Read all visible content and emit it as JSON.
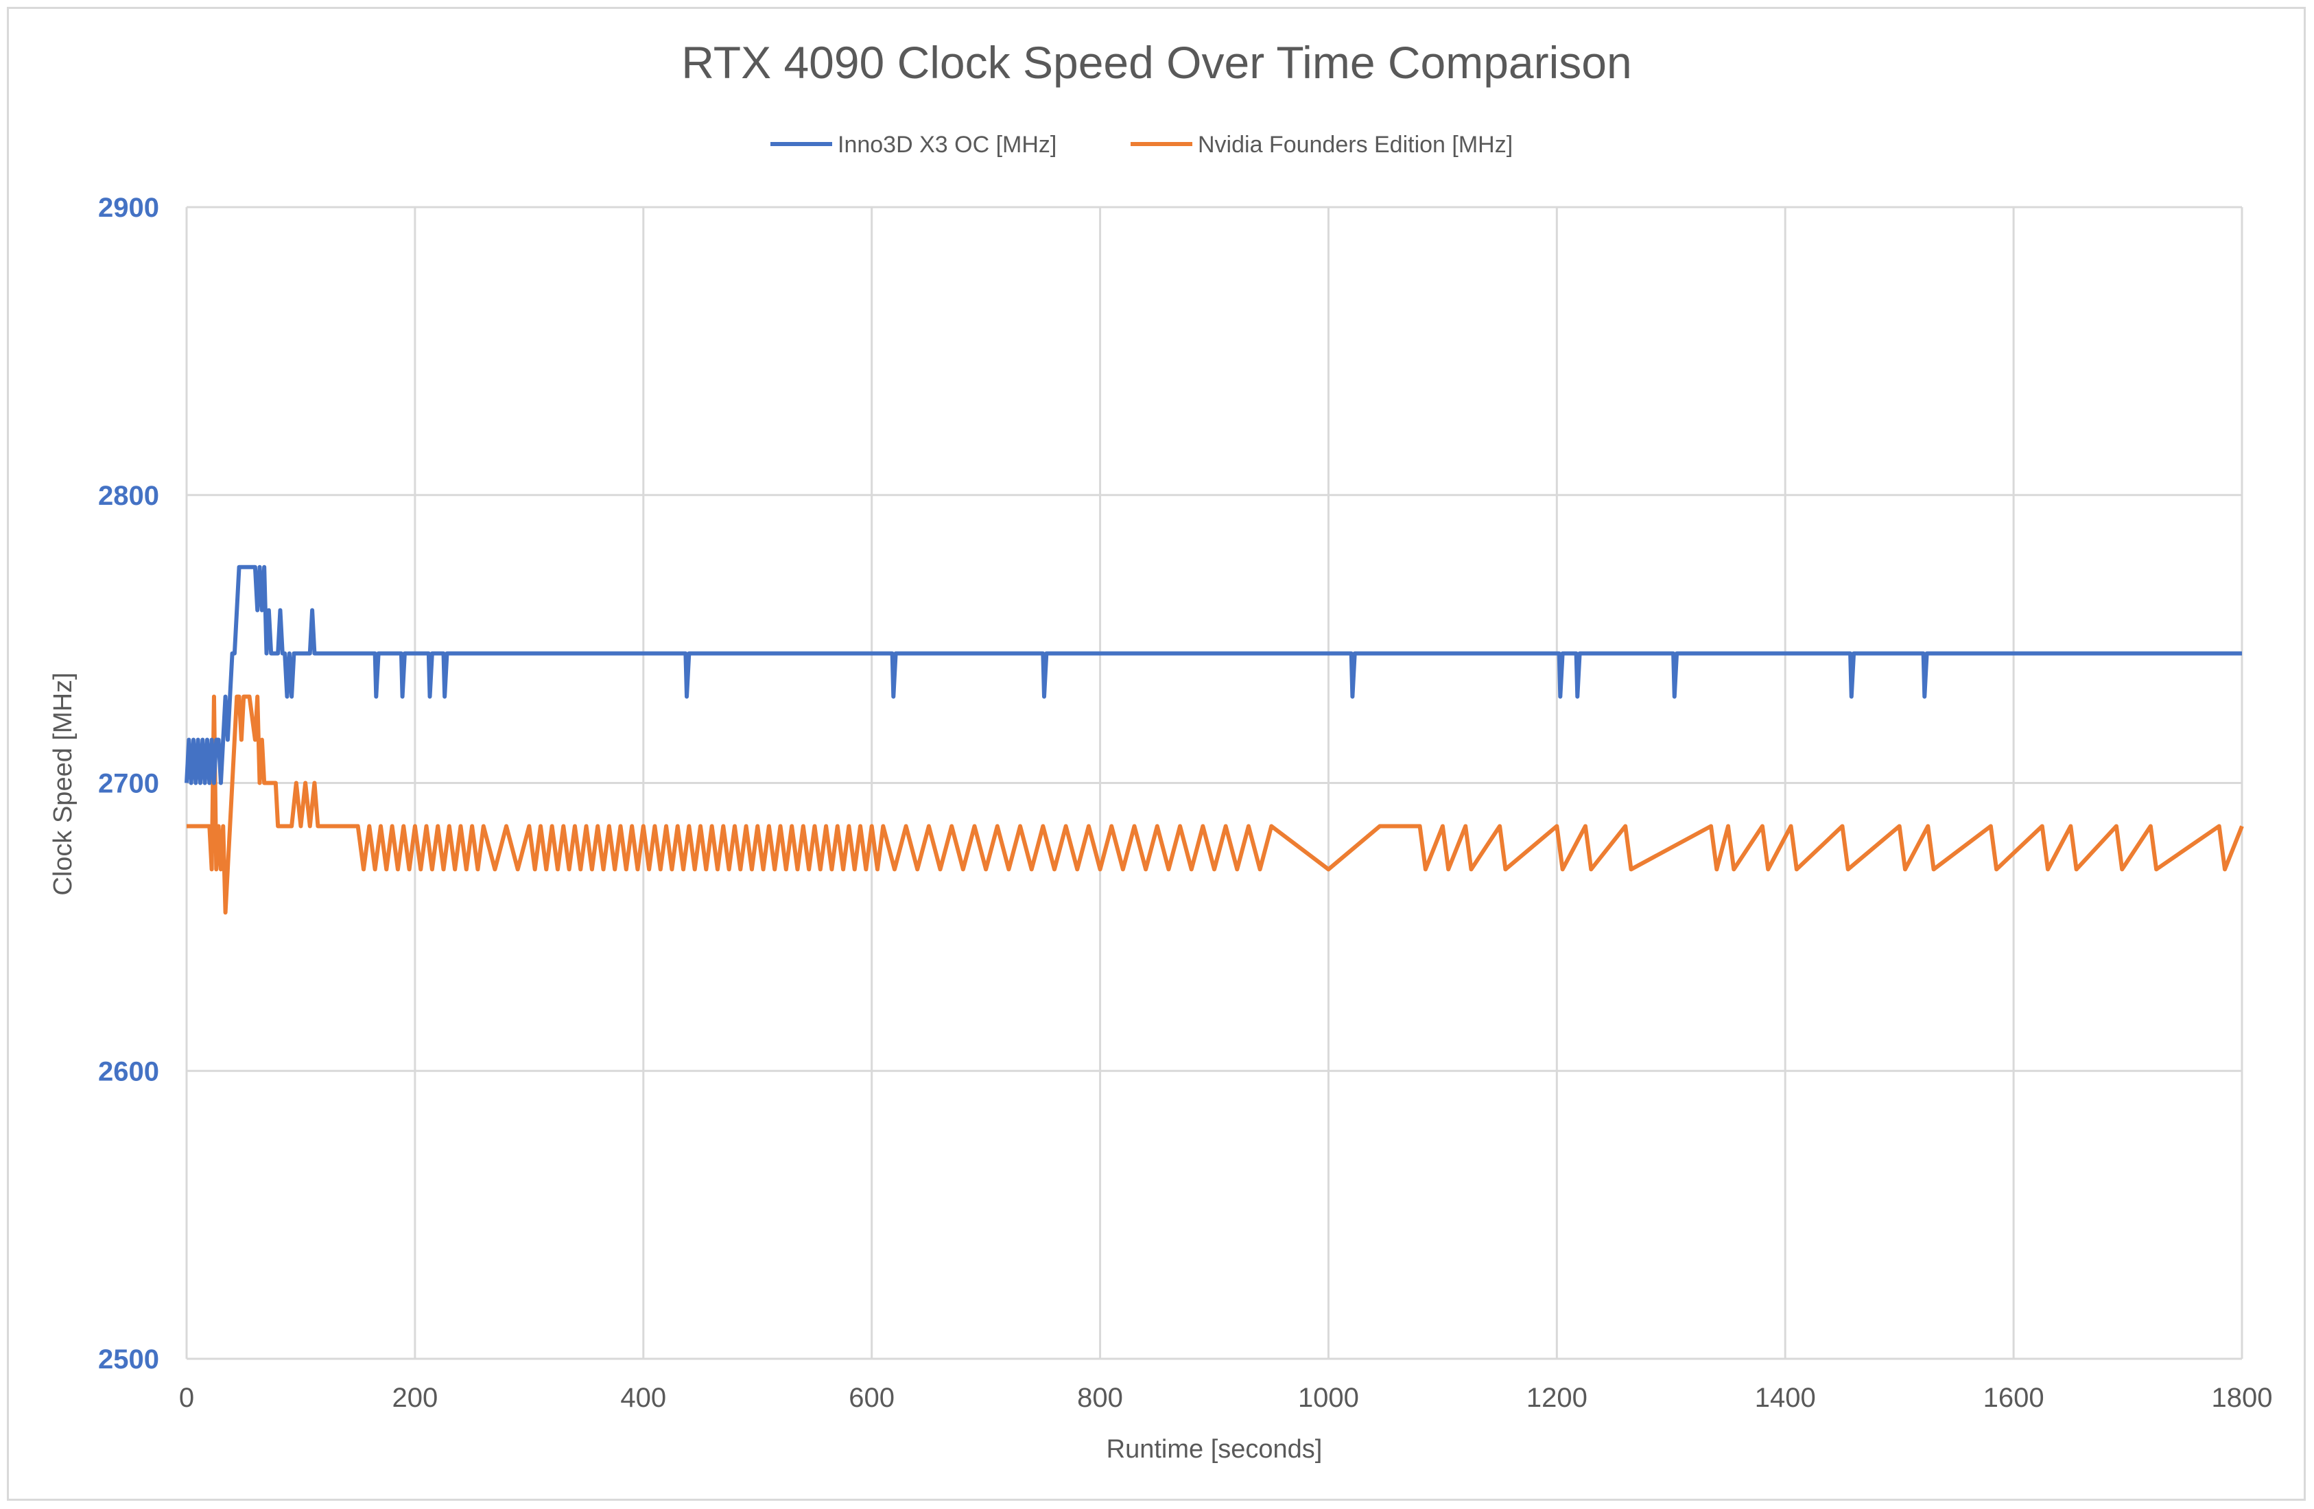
{
  "chart_data": {
    "type": "line",
    "title": "RTX 4090 Clock Speed Over Time Comparison",
    "xlabel": "Runtime [seconds]",
    "ylabel": "Clock Speed [MHz]",
    "xlim": [
      0,
      1800
    ],
    "ylim": [
      2500,
      2900
    ],
    "x_ticks": [
      0,
      200,
      400,
      600,
      800,
      1000,
      1200,
      1400,
      1600,
      1800
    ],
    "y_ticks": [
      2500,
      2600,
      2700,
      2800,
      2900
    ],
    "x_tick_labels": [
      "0",
      "200",
      "400",
      "600",
      "800",
      "1000",
      "1200",
      "1400",
      "1600",
      "1800"
    ],
    "y_tick_labels": [
      "2500",
      "2600",
      "2700",
      "2800",
      "2900"
    ],
    "grid": {
      "vertical": true,
      "horizontal": true
    },
    "legend_position": "top",
    "series": [
      {
        "name": "Inno3D X3 OC [MHz]",
        "color": "#4472c4",
        "x": [
          0,
          2,
          4,
          6,
          8,
          10,
          12,
          14,
          16,
          18,
          20,
          22,
          24,
          26,
          28,
          30,
          32,
          34,
          36,
          38,
          40,
          42,
          44,
          46,
          48,
          50,
          55,
          60,
          62,
          64,
          66,
          68,
          70,
          72,
          74,
          76,
          78,
          80,
          82,
          84,
          86,
          88,
          90,
          92,
          94,
          100,
          108,
          110,
          112,
          165,
          166,
          168,
          188,
          189,
          191,
          212,
          213,
          215,
          225,
          226,
          228,
          437,
          438,
          440,
          618,
          619,
          621,
          750,
          751,
          753,
          1020,
          1021,
          1023,
          1202,
          1203,
          1205,
          1217,
          1218,
          1220,
          1302,
          1303,
          1305,
          1457,
          1458,
          1460,
          1521,
          1522,
          1524,
          1800
        ],
        "y": [
          2700,
          2715,
          2700,
          2715,
          2700,
          2715,
          2700,
          2715,
          2700,
          2715,
          2700,
          2715,
          2700,
          2715,
          2715,
          2700,
          2715,
          2730,
          2715,
          2730,
          2745,
          2745,
          2760,
          2775,
          2775,
          2775,
          2775,
          2775,
          2760,
          2775,
          2760,
          2775,
          2745,
          2760,
          2745,
          2745,
          2745,
          2745,
          2760,
          2745,
          2745,
          2730,
          2745,
          2730,
          2745,
          2745,
          2745,
          2760,
          2745,
          2745,
          2730,
          2745,
          2745,
          2730,
          2745,
          2745,
          2730,
          2745,
          2745,
          2730,
          2745,
          2745,
          2730,
          2745,
          2745,
          2730,
          2745,
          2745,
          2730,
          2745,
          2745,
          2730,
          2745,
          2745,
          2730,
          2745,
          2745,
          2730,
          2745,
          2745,
          2730,
          2745,
          2745,
          2730,
          2745,
          2745,
          2730,
          2745,
          2745
        ]
      },
      {
        "name": "Nvidia Founders Edition [MHz]",
        "color": "#ed7d31",
        "x": [
          0,
          20,
          22,
          24,
          26,
          28,
          30,
          32,
          34,
          36,
          38,
          40,
          42,
          44,
          46,
          48,
          50,
          55,
          60,
          62,
          64,
          66,
          68,
          70,
          72,
          74,
          76,
          78,
          80,
          84,
          88,
          92,
          96,
          100,
          104,
          108,
          112,
          115,
          150,
          155,
          160,
          165,
          170,
          175,
          180,
          185,
          190,
          195,
          200,
          205,
          210,
          215,
          220,
          225,
          230,
          235,
          240,
          245,
          250,
          255,
          260,
          270,
          280,
          290,
          300,
          305,
          310,
          315,
          320,
          325,
          330,
          335,
          340,
          345,
          350,
          355,
          360,
          365,
          370,
          375,
          380,
          385,
          390,
          395,
          400,
          405,
          410,
          415,
          420,
          425,
          430,
          435,
          440,
          445,
          450,
          455,
          460,
          465,
          470,
          475,
          480,
          485,
          490,
          495,
          500,
          505,
          510,
          515,
          520,
          525,
          530,
          535,
          540,
          545,
          550,
          555,
          560,
          565,
          570,
          575,
          580,
          585,
          590,
          595,
          600,
          605,
          610,
          620,
          630,
          640,
          650,
          660,
          670,
          680,
          690,
          700,
          710,
          720,
          730,
          740,
          750,
          760,
          770,
          780,
          790,
          800,
          810,
          820,
          830,
          840,
          850,
          860,
          870,
          880,
          890,
          900,
          910,
          920,
          930,
          940,
          950,
          1000,
          1045,
          1050,
          1080,
          1085,
          1100,
          1105,
          1120,
          1125,
          1150,
          1155,
          1200,
          1205,
          1225,
          1230,
          1260,
          1265,
          1335,
          1340,
          1350,
          1355,
          1380,
          1385,
          1405,
          1410,
          1450,
          1455,
          1500,
          1505,
          1525,
          1530,
          1580,
          1585,
          1625,
          1630,
          1650,
          1655,
          1690,
          1695,
          1720,
          1725,
          1780,
          1785,
          1800
        ],
        "y": [
          2685,
          2685,
          2670,
          2730,
          2670,
          2685,
          2670,
          2685,
          2655,
          2670,
          2685,
          2700,
          2715,
          2730,
          2730,
          2715,
          2730,
          2730,
          2715,
          2730,
          2700,
          2715,
          2700,
          2700,
          2700,
          2700,
          2700,
          2700,
          2685,
          2685,
          2685,
          2685,
          2700,
          2685,
          2700,
          2685,
          2700,
          2685,
          2685,
          2670,
          2685,
          2670,
          2685,
          2670,
          2685,
          2670,
          2685,
          2670,
          2685,
          2670,
          2685,
          2670,
          2685,
          2670,
          2685,
          2670,
          2685,
          2670,
          2685,
          2670,
          2685,
          2670,
          2685,
          2670,
          2685,
          2670,
          2685,
          2670,
          2685,
          2670,
          2685,
          2670,
          2685,
          2670,
          2685,
          2670,
          2685,
          2670,
          2685,
          2670,
          2685,
          2670,
          2685,
          2670,
          2685,
          2670,
          2685,
          2670,
          2685,
          2670,
          2685,
          2670,
          2685,
          2670,
          2685,
          2670,
          2685,
          2670,
          2685,
          2670,
          2685,
          2670,
          2685,
          2670,
          2685,
          2670,
          2685,
          2670,
          2685,
          2670,
          2685,
          2670,
          2685,
          2670,
          2685,
          2670,
          2685,
          2670,
          2685,
          2670,
          2685,
          2670,
          2685,
          2670,
          2685,
          2670,
          2685,
          2670,
          2685,
          2670,
          2685,
          2670,
          2685,
          2670,
          2685,
          2670,
          2685,
          2670,
          2685,
          2670,
          2685,
          2670,
          2685,
          2670,
          2685,
          2670,
          2685,
          2670,
          2685,
          2670,
          2685,
          2670,
          2685,
          2670,
          2685,
          2670,
          2685,
          2670,
          2685,
          2670,
          2685,
          2670,
          2685,
          2685,
          2685,
          2670,
          2685,
          2670,
          2685,
          2670,
          2685,
          2670,
          2685,
          2670,
          2685,
          2670,
          2685,
          2670,
          2685,
          2670,
          2685,
          2670,
          2685,
          2670,
          2685,
          2670,
          2685,
          2670,
          2685,
          2670,
          2685,
          2670,
          2685,
          2670,
          2685,
          2670,
          2685,
          2670,
          2685,
          2670,
          2685,
          2670,
          2685,
          2670,
          2685
        ]
      }
    ]
  }
}
